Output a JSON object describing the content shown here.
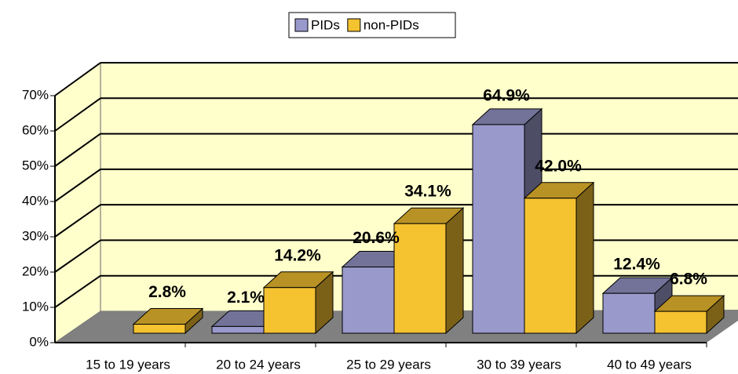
{
  "chart_data": {
    "type": "bar3d",
    "categories": [
      "15 to 19 years",
      "20 to 24 years",
      "25 to 29 years",
      "30 to 39 years",
      "40 to 49 years"
    ],
    "series": [
      {
        "name": "PIDs",
        "color": "#9999cc",
        "values": [
          null,
          2.1,
          20.6,
          64.9,
          12.4
        ],
        "value_labels": [
          null,
          "2.1%",
          "20.6%",
          "64.9%",
          "12.4%"
        ]
      },
      {
        "name": "non-PIDs",
        "color": "#f5c230",
        "values": [
          2.8,
          14.2,
          34.1,
          42.0,
          6.8
        ],
        "value_labels": [
          "2.8%",
          "14.2%",
          "34.1%",
          "42.0%",
          "6.8%"
        ]
      }
    ],
    "ylim": [
      0,
      70
    ],
    "yticks": [
      {
        "value": 0,
        "label": "0%"
      },
      {
        "value": 10,
        "label": "10%"
      },
      {
        "value": 20,
        "label": "20%"
      },
      {
        "value": 30,
        "label": "30%"
      },
      {
        "value": 40,
        "label": "40%"
      },
      {
        "value": 50,
        "label": "50%"
      },
      {
        "value": 60,
        "label": "60%"
      },
      {
        "value": 70,
        "label": "70%"
      }
    ],
    "grid": true,
    "legend": "top"
  }
}
